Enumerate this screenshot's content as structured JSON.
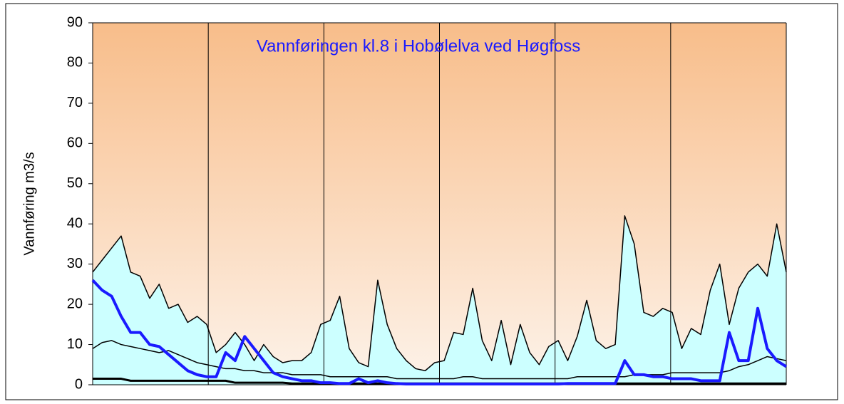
{
  "chart_data": {
    "type": "line",
    "title": "Vannføringen kl.8 i Hobølelva ved Høgfoss",
    "y_label": "Vannføring m3/s",
    "x": [
      0,
      5,
      10,
      15,
      20,
      25,
      30,
      35,
      40,
      45,
      50,
      55,
      60,
      65,
      70,
      75,
      80,
      85,
      90,
      95,
      100,
      105,
      110,
      115,
      120,
      125,
      130,
      135,
      140,
      145,
      150,
      155,
      160,
      165,
      170,
      175,
      180,
      185,
      190,
      195,
      200,
      205,
      210,
      215,
      220,
      225,
      230,
      235,
      240,
      245,
      250,
      255,
      260,
      265,
      270,
      275,
      280,
      285,
      290,
      295,
      300,
      305,
      310,
      315,
      320,
      325,
      330,
      335,
      340,
      345,
      350,
      355,
      360,
      365
    ],
    "xlim": [
      0,
      365
    ],
    "ylim": [
      0,
      90
    ],
    "yticks": [
      0,
      10,
      20,
      30,
      40,
      50,
      60,
      70,
      80,
      90
    ],
    "fill": "#ccffff",
    "series": [
      {
        "color": "#000000",
        "width": 1.5,
        "values": [
          28,
          31,
          34,
          37,
          28,
          27,
          21.5,
          25,
          19,
          20,
          15.5,
          17,
          15,
          8,
          10,
          13,
          10,
          6,
          10,
          7,
          5.5,
          6,
          6,
          8,
          15,
          16,
          22,
          9,
          5.5,
          4.5,
          26,
          15,
          9,
          6,
          4,
          3.5,
          5.5,
          6,
          13,
          12.5,
          24,
          11,
          6,
          16,
          5,
          15,
          8,
          5,
          9.5,
          11,
          6,
          12,
          21,
          11,
          9,
          10,
          42,
          35,
          18,
          17,
          19,
          18,
          9,
          14,
          12.5,
          23.5,
          30,
          15,
          24,
          28,
          30,
          27,
          40,
          28
        ]
      },
      {
        "color": "#000000",
        "width": 1.5,
        "values": [
          9,
          10.5,
          11,
          10,
          9.5,
          9,
          8.5,
          8,
          8.5,
          7.5,
          6.5,
          5.5,
          5,
          4.5,
          4,
          4,
          3.5,
          3.5,
          3,
          3,
          3,
          2.5,
          2.5,
          2.5,
          2.5,
          2,
          2,
          2,
          2,
          2,
          2,
          2,
          1.5,
          1.5,
          1.5,
          1.5,
          1.5,
          1.5,
          1.5,
          2,
          2,
          1.5,
          1.5,
          1.5,
          1.5,
          1.5,
          1.5,
          1.5,
          1.5,
          1.5,
          1.5,
          2,
          2,
          2,
          2,
          2,
          2,
          2.5,
          2.5,
          2.5,
          2.5,
          3,
          3,
          3,
          3,
          3,
          3,
          3.5,
          4.5,
          5,
          6,
          7,
          6.5,
          6
        ]
      },
      {
        "color": "#000000",
        "width": 3,
        "values": [
          1.5,
          1.5,
          1.5,
          1.5,
          1,
          1,
          1,
          1,
          1,
          1,
          1,
          1,
          1,
          1,
          1,
          0.5,
          0.5,
          0.5,
          0.5,
          0.5,
          0.5,
          0.3,
          0.3,
          0.3,
          0.3,
          0.3,
          0.3,
          0.3,
          0.3,
          0.3,
          0.3,
          0.3,
          0.3,
          0.3,
          0.3,
          0.3,
          0.3,
          0.3,
          0.3,
          0.3,
          0.3,
          0.3,
          0.3,
          0.3,
          0.3,
          0.3,
          0.3,
          0.3,
          0.3,
          0.3,
          0.3,
          0.3,
          0.3,
          0.3,
          0.3,
          0.3,
          0.3,
          0.3,
          0.3,
          0.3,
          0.3,
          0.3,
          0.3,
          0.3,
          0.3,
          0.3,
          0.3,
          0.3,
          0.3,
          0.3,
          0.3,
          0.3,
          0.3,
          0.3
        ]
      },
      {
        "color": "#1a1aff",
        "width": 4,
        "values": [
          26,
          23.5,
          22,
          17,
          13,
          13,
          10,
          9.5,
          7.5,
          5.5,
          3.5,
          2.5,
          2,
          2,
          8,
          6,
          12,
          9,
          6,
          3,
          2,
          1.5,
          1,
          1,
          0.5,
          0.5,
          0.3,
          0.3,
          1.5,
          0.5,
          1,
          0.5,
          0.3,
          0.2,
          0.2,
          0.2,
          0.2,
          0.2,
          0.2,
          0.2,
          0.2,
          0.2,
          0.2,
          0.2,
          0.2,
          0.2,
          0.2,
          0.2,
          0.2,
          0.2,
          0.3,
          0.3,
          0.3,
          0.3,
          0.3,
          0.3,
          6,
          2.5,
          2.5,
          2,
          2,
          1.5,
          1.5,
          1.5,
          1,
          1,
          1,
          13,
          6,
          6,
          19,
          9,
          6,
          4.5
        ]
      }
    ]
  }
}
